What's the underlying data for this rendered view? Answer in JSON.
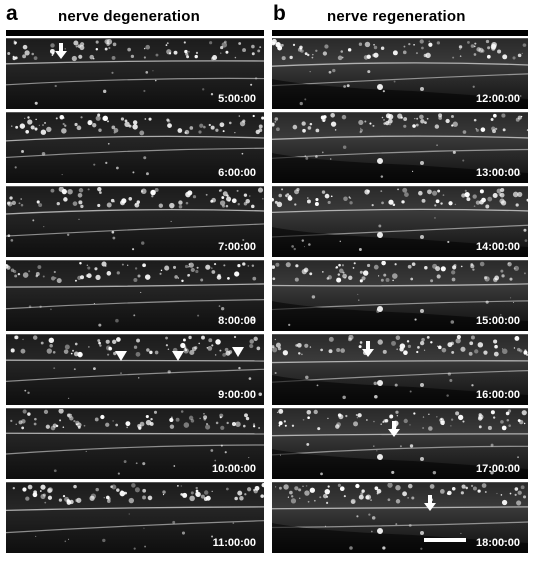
{
  "panels": [
    {
      "letter": "a",
      "title": "nerve degeneration",
      "frames": [
        {
          "time": "5:00:00",
          "markers": [
            {
              "kind": "arrow"
            }
          ]
        },
        {
          "time": "6:00:00",
          "markers": []
        },
        {
          "time": "7:00:00",
          "markers": []
        },
        {
          "time": "8:00:00",
          "markers": []
        },
        {
          "time": "9:00:00",
          "markers": [
            {
              "kind": "arrowhead"
            },
            {
              "kind": "arrowhead"
            },
            {
              "kind": "arrowhead"
            }
          ]
        },
        {
          "time": "10:00:00",
          "markers": []
        },
        {
          "time": "11:00:00",
          "markers": []
        }
      ]
    },
    {
      "letter": "b",
      "title": "nerve regeneration",
      "frames": [
        {
          "time": "12:00:00",
          "markers": []
        },
        {
          "time": "13:00:00",
          "markers": []
        },
        {
          "time": "14:00:00",
          "markers": []
        },
        {
          "time": "15:00:00",
          "markers": []
        },
        {
          "time": "16:00:00",
          "markers": [
            {
              "kind": "arrow"
            }
          ]
        },
        {
          "time": "17:00:00",
          "markers": [
            {
              "kind": "arrow"
            }
          ]
        },
        {
          "time": "18:00:00",
          "markers": [
            {
              "kind": "arrow"
            }
          ],
          "scale_bar": true
        }
      ]
    }
  ]
}
